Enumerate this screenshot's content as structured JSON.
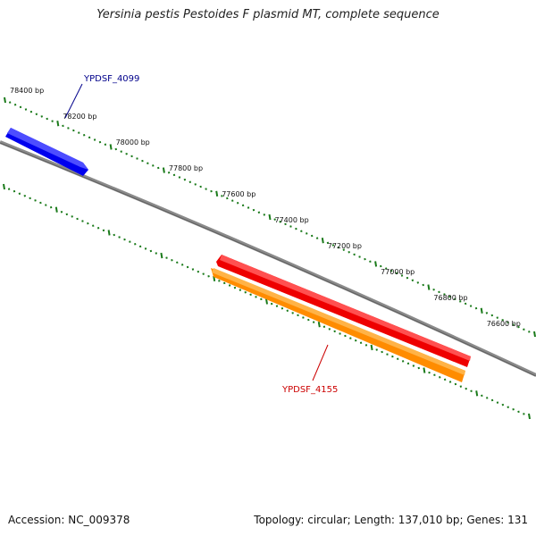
{
  "title": "Yersinia pestis Pestoides F plasmid MT, complete sequence",
  "footer": {
    "accession": "Accession: NC_009378",
    "summary": "Topology: circular; Length: 137,010 bp; Genes: 131"
  },
  "ticks": [
    "78400 bp",
    "78200 bp",
    "78000 bp",
    "77800 bp",
    "77600 bp",
    "77400 bp",
    "77200 bp",
    "77000 bp",
    "76800 bp",
    "76600 bp"
  ],
  "genes": [
    {
      "id": "YPDSF_4099",
      "label": "YPDSF_4099",
      "color": "#0000ee",
      "highlight": "#4d4dff",
      "strand": "forward"
    },
    {
      "id": "YPDSF_4155",
      "label": "YPDSF_4155",
      "color": "#ee0000",
      "highlight": "#ff5050",
      "strand": "reverse"
    },
    {
      "id": "YPDSF_4155_cds",
      "color": "#ff8c00",
      "highlight": "#ffb347",
      "strand": "reverse"
    }
  ],
  "colors": {
    "backbone": "#808080",
    "tick": "#1a7a1a",
    "forward_label": "#00008b",
    "reverse_label": "#cc0000"
  }
}
